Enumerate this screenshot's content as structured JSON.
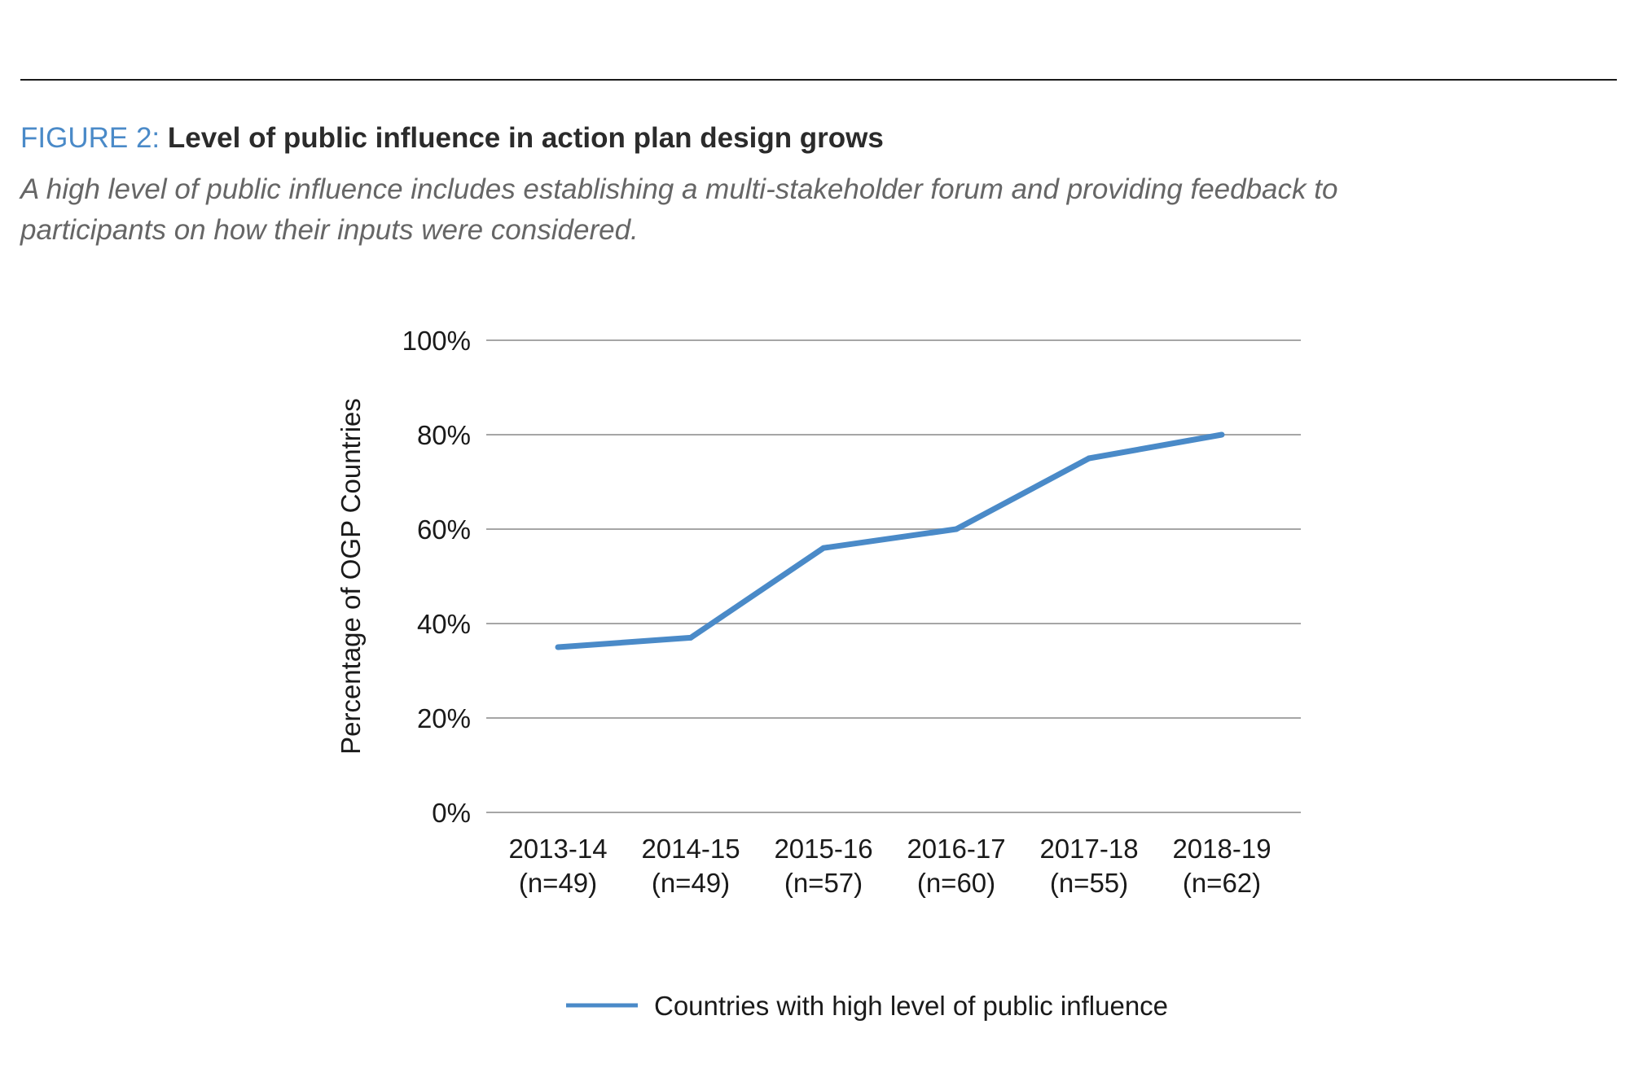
{
  "figure": {
    "label": "FIGURE 2: ",
    "title": "Level of public influence in action plan design grows",
    "subtitle_line1": "A high level of public influence includes establishing a multi-stakeholder forum and providing feedback to",
    "subtitle_line2": "participants on how their inputs were considered."
  },
  "chart_data": {
    "type": "line",
    "title": "Level of public influence in action plan design grows",
    "xlabel": "",
    "ylabel": "Percentage of OGP Countries",
    "ylim": [
      0,
      100
    ],
    "yticks": [
      0,
      20,
      40,
      60,
      80,
      100
    ],
    "ytick_labels": [
      "0%",
      "20%",
      "40%",
      "60%",
      "80%",
      "100%"
    ],
    "categories": [
      "2013-14",
      "2014-15",
      "2015-16",
      "2016-17",
      "2017-18",
      "2018-19"
    ],
    "category_sublabels": [
      "(n=49)",
      "(n=49)",
      "(n=57)",
      "(n=60)",
      "(n=55)",
      "(n=62)"
    ],
    "series": [
      {
        "name": "Countries with high level of public influence",
        "values": [
          35,
          37,
          56,
          60,
          75,
          80
        ],
        "color": "#4a8ac8"
      }
    ],
    "grid": true,
    "grid_color": "#a6a6a6",
    "legend": "bottom"
  }
}
